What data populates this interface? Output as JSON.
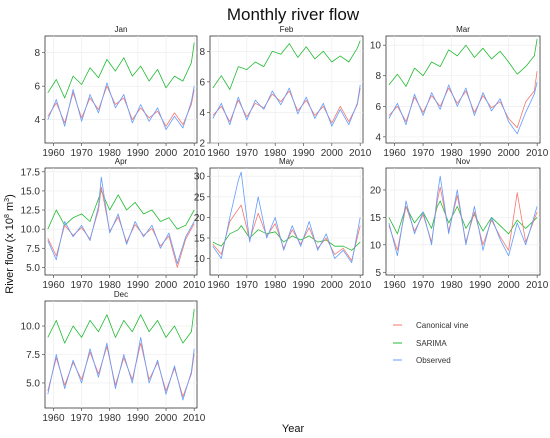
{
  "figure": {
    "title": "Monthly river flow",
    "xlabel": "Year",
    "ylabel_main": "River flow (x 10",
    "ylabel_sup": "8",
    "ylabel_tail": " m",
    "ylabel_sup2": "3",
    "ylabel_end": ")"
  },
  "legend": {
    "position": "bottom-right",
    "items": [
      {
        "label": "Canonical vine",
        "color": "#f8766d"
      },
      {
        "label": "SARIMA",
        "color": "#22bb33"
      },
      {
        "label": "Observed",
        "color": "#619cff"
      }
    ]
  },
  "chart_data": [
    {
      "type": "line",
      "title": "Jan",
      "x_range": [
        1957,
        2011
      ],
      "ylim": [
        2.6,
        9.0
      ],
      "yticks": [
        4,
        6,
        8
      ],
      "xticks": [
        1960,
        1970,
        1980,
        1990,
        2000,
        2010
      ],
      "series": [
        {
          "name": "Observed",
          "x": [
            1958,
            1961,
            1964,
            1967,
            1970,
            1973,
            1976,
            1979,
            1982,
            1985,
            1988,
            1991,
            1994,
            1997,
            2000,
            2003,
            2006,
            2009,
            2010
          ],
          "values": [
            4.0,
            5.2,
            3.6,
            5.8,
            3.9,
            5.5,
            4.4,
            6.2,
            4.7,
            5.5,
            3.8,
            4.9,
            3.9,
            4.7,
            3.4,
            4.2,
            3.5,
            5.1,
            6.0
          ]
        },
        {
          "name": "Canonical vine",
          "x": [
            1958,
            1961,
            1964,
            1967,
            1970,
            1973,
            1976,
            1979,
            1982,
            1985,
            1988,
            1991,
            1994,
            1997,
            2000,
            2003,
            2006,
            2009,
            2010
          ],
          "values": [
            4.2,
            5.0,
            3.8,
            5.6,
            4.1,
            5.3,
            4.6,
            6.0,
            4.9,
            5.3,
            4.0,
            4.7,
            4.1,
            4.5,
            3.6,
            4.4,
            3.7,
            4.9,
            5.8
          ]
        },
        {
          "name": "SARIMA",
          "x": [
            1958,
            1961,
            1964,
            1967,
            1970,
            1973,
            1976,
            1979,
            1982,
            1985,
            1988,
            1991,
            1994,
            1997,
            2000,
            2003,
            2006,
            2009,
            2010
          ],
          "values": [
            5.6,
            6.4,
            5.3,
            6.6,
            6.1,
            7.1,
            6.5,
            7.6,
            6.9,
            7.7,
            6.6,
            7.2,
            6.3,
            7.0,
            5.9,
            6.6,
            6.3,
            7.4,
            8.6
          ]
        }
      ]
    },
    {
      "type": "line",
      "title": "Feb",
      "x_range": [
        1957,
        2011
      ],
      "ylim": [
        2.0,
        9.0
      ],
      "yticks": [
        2,
        4,
        6,
        8
      ],
      "xticks": [
        1960,
        1970,
        1980,
        1990,
        2000,
        2010
      ],
      "series": [
        {
          "name": "Observed",
          "x": [
            1958,
            1961,
            1964,
            1967,
            1970,
            1973,
            1976,
            1979,
            1982,
            1985,
            1988,
            1991,
            1994,
            1997,
            2000,
            2003,
            2006,
            2009,
            2010
          ],
          "values": [
            3.6,
            4.6,
            3.2,
            5.0,
            3.5,
            4.8,
            4.2,
            5.4,
            4.5,
            5.6,
            3.9,
            5.0,
            3.6,
            4.6,
            3.1,
            4.2,
            3.2,
            4.6,
            5.8
          ]
        },
        {
          "name": "Canonical vine",
          "x": [
            1958,
            1961,
            1964,
            1967,
            1970,
            1973,
            1976,
            1979,
            1982,
            1985,
            1988,
            1991,
            1994,
            1997,
            2000,
            2003,
            2006,
            2009,
            2010
          ],
          "values": [
            3.8,
            4.4,
            3.4,
            4.8,
            3.7,
            4.6,
            4.3,
            5.2,
            4.7,
            5.4,
            4.1,
            4.8,
            3.8,
            4.4,
            3.3,
            4.4,
            3.4,
            4.5,
            5.6
          ]
        },
        {
          "name": "SARIMA",
          "x": [
            1958,
            1961,
            1964,
            1967,
            1970,
            1973,
            1976,
            1979,
            1982,
            1985,
            1988,
            1991,
            1994,
            1997,
            2000,
            2003,
            2006,
            2009,
            2010
          ],
          "values": [
            5.6,
            6.4,
            5.5,
            7.0,
            6.8,
            7.3,
            7.0,
            8.0,
            7.8,
            8.5,
            7.6,
            8.3,
            7.5,
            8.0,
            7.3,
            7.7,
            7.3,
            8.2,
            8.7
          ]
        }
      ]
    },
    {
      "type": "line",
      "title": "Mar",
      "x_range": [
        1957,
        2011
      ],
      "ylim": [
        3.6,
        10.6
      ],
      "yticks": [
        4,
        6,
        8,
        10
      ],
      "xticks": [
        1960,
        1970,
        1980,
        1990,
        2000,
        2010
      ],
      "series": [
        {
          "name": "Observed",
          "x": [
            1958,
            1961,
            1964,
            1967,
            1970,
            1973,
            1976,
            1979,
            1982,
            1985,
            1988,
            1991,
            1994,
            1997,
            2000,
            2003,
            2006,
            2009,
            2010
          ],
          "values": [
            5.2,
            6.2,
            4.8,
            6.8,
            5.4,
            6.9,
            5.8,
            7.4,
            6.0,
            7.2,
            5.4,
            6.9,
            5.7,
            6.5,
            5.0,
            4.2,
            5.6,
            6.8,
            7.6
          ]
        },
        {
          "name": "Canonical vine",
          "x": [
            1958,
            1961,
            1964,
            1967,
            1970,
            1973,
            1976,
            1979,
            1982,
            1985,
            1988,
            1991,
            1994,
            1997,
            2000,
            2003,
            2006,
            2009,
            2010
          ],
          "values": [
            5.4,
            6.0,
            5.0,
            6.6,
            5.6,
            6.7,
            6.0,
            7.2,
            6.2,
            7.0,
            5.6,
            6.7,
            5.9,
            6.3,
            5.2,
            4.6,
            6.3,
            7.0,
            8.3
          ]
        },
        {
          "name": "SARIMA",
          "x": [
            1958,
            1961,
            1964,
            1967,
            1970,
            1973,
            1976,
            1979,
            1982,
            1985,
            1988,
            1991,
            1994,
            1997,
            2000,
            2003,
            2006,
            2009,
            2010
          ],
          "values": [
            7.4,
            8.1,
            7.3,
            8.5,
            8.0,
            8.9,
            8.6,
            9.7,
            9.3,
            10.0,
            9.2,
            9.8,
            9.1,
            9.6,
            8.9,
            8.1,
            8.6,
            9.3,
            10.4
          ]
        }
      ]
    },
    {
      "type": "line",
      "title": "Apr",
      "x_range": [
        1957,
        2011
      ],
      "ylim": [
        4.0,
        18.0
      ],
      "yticks": [
        5.0,
        7.5,
        10.0,
        12.5,
        15.0,
        17.5
      ],
      "xticks": [
        1960,
        1970,
        1980,
        1990,
        2000,
        2010
      ],
      "series": [
        {
          "name": "Observed",
          "x": [
            1958,
            1961,
            1964,
            1967,
            1970,
            1973,
            1976,
            1977,
            1980,
            1983,
            1986,
            1989,
            1992,
            1995,
            1998,
            2001,
            2004,
            2007,
            2010
          ],
          "values": [
            8.5,
            6.0,
            11.0,
            9.0,
            10.5,
            8.5,
            13.0,
            16.8,
            9.5,
            12.0,
            8.0,
            11.0,
            9.0,
            10.5,
            7.5,
            9.5,
            5.5,
            9.0,
            11.0
          ]
        },
        {
          "name": "Canonical vine",
          "x": [
            1958,
            1961,
            1964,
            1967,
            1970,
            1973,
            1976,
            1977,
            1980,
            1983,
            1986,
            1989,
            1992,
            1995,
            1998,
            2001,
            2004,
            2007,
            2010
          ],
          "values": [
            8.8,
            6.5,
            10.5,
            9.2,
            10.2,
            8.7,
            12.5,
            15.5,
            9.7,
            11.6,
            8.3,
            10.6,
            9.2,
            10.1,
            7.8,
            9.1,
            5.0,
            8.7,
            10.7
          ]
        },
        {
          "name": "SARIMA",
          "x": [
            1958,
            1961,
            1964,
            1967,
            1970,
            1973,
            1976,
            1977,
            1980,
            1983,
            1986,
            1989,
            1992,
            1995,
            1998,
            2001,
            2004,
            2007,
            2010
          ],
          "values": [
            10.0,
            12.5,
            10.5,
            11.5,
            12.0,
            11.0,
            14.0,
            15.0,
            12.5,
            14.5,
            12.5,
            13.5,
            12.0,
            12.5,
            11.0,
            11.5,
            10.0,
            10.5,
            12.5
          ]
        }
      ]
    },
    {
      "type": "line",
      "title": "May",
      "x_range": [
        1957,
        2011
      ],
      "ylim": [
        6.0,
        32.0
      ],
      "yticks": [
        10,
        15,
        20,
        25,
        30
      ],
      "xticks": [
        1960,
        1970,
        1980,
        1990,
        2000,
        2010
      ],
      "series": [
        {
          "name": "Observed",
          "x": [
            1958,
            1961,
            1964,
            1967,
            1968,
            1971,
            1974,
            1977,
            1980,
            1983,
            1986,
            1989,
            1992,
            1995,
            1998,
            2001,
            2004,
            2007,
            2010
          ],
          "values": [
            13.0,
            10.0,
            20.0,
            29.0,
            31.0,
            14.0,
            25.0,
            15.0,
            20.0,
            12.0,
            18.0,
            13.0,
            19.0,
            12.0,
            16.0,
            10.0,
            12.0,
            9.0,
            20.0
          ]
        },
        {
          "name": "Canonical vine",
          "x": [
            1958,
            1961,
            1964,
            1967,
            1968,
            1971,
            1974,
            1977,
            1980,
            1983,
            1986,
            1989,
            1992,
            1995,
            1998,
            2001,
            2004,
            2007,
            2010
          ],
          "values": [
            13.5,
            11.0,
            19.0,
            22.0,
            23.0,
            14.5,
            21.0,
            15.5,
            18.5,
            12.5,
            17.0,
            13.5,
            17.5,
            12.5,
            15.0,
            11.0,
            12.5,
            9.5,
            18.0
          ]
        },
        {
          "name": "SARIMA",
          "x": [
            1958,
            1961,
            1964,
            1967,
            1968,
            1971,
            1974,
            1977,
            1980,
            1983,
            1986,
            1989,
            1992,
            1995,
            1998,
            2001,
            2004,
            2007,
            2010
          ],
          "values": [
            14.0,
            13.0,
            16.0,
            17.0,
            18.0,
            15.0,
            17.0,
            16.0,
            16.5,
            14.0,
            15.5,
            14.5,
            15.5,
            14.0,
            14.5,
            13.0,
            13.0,
            12.0,
            14.0
          ]
        }
      ]
    },
    {
      "type": "line",
      "title": "Nov",
      "x_range": [
        1957,
        2011
      ],
      "ylim": [
        4.5,
        24.0
      ],
      "yticks": [
        5,
        10,
        15,
        20
      ],
      "xticks": [
        1960,
        1970,
        1980,
        1990,
        2000,
        2010
      ],
      "series": [
        {
          "name": "Observed",
          "x": [
            1958,
            1961,
            1964,
            1967,
            1970,
            1973,
            1975,
            1976,
            1979,
            1982,
            1985,
            1988,
            1991,
            1994,
            1997,
            2000,
            2003,
            2006,
            2010
          ],
          "values": [
            14.0,
            8.0,
            18.0,
            12.0,
            16.0,
            10.0,
            19.0,
            22.5,
            12.0,
            20.0,
            10.0,
            17.0,
            9.0,
            15.0,
            11.0,
            8.0,
            14.0,
            10.0,
            17.0
          ]
        },
        {
          "name": "Canonical vine",
          "x": [
            1958,
            1961,
            1964,
            1967,
            1970,
            1973,
            1975,
            1976,
            1979,
            1982,
            1985,
            1988,
            1991,
            1994,
            1997,
            2000,
            2003,
            2006,
            2010
          ],
          "values": [
            13.5,
            9.0,
            17.0,
            12.5,
            15.5,
            10.5,
            18.0,
            20.5,
            12.5,
            19.0,
            10.5,
            16.0,
            10.0,
            14.5,
            11.5,
            9.0,
            19.5,
            10.5,
            16.0
          ]
        },
        {
          "name": "SARIMA",
          "x": [
            1958,
            1961,
            1964,
            1967,
            1970,
            1973,
            1975,
            1976,
            1979,
            1982,
            1985,
            1988,
            1991,
            1994,
            1997,
            2000,
            2003,
            2006,
            2010
          ],
          "values": [
            15.0,
            12.0,
            17.0,
            14.0,
            16.0,
            13.0,
            17.0,
            18.0,
            14.0,
            17.0,
            13.0,
            15.5,
            12.5,
            15.0,
            13.5,
            12.0,
            14.5,
            13.0,
            15.0
          ]
        }
      ]
    },
    {
      "type": "line",
      "title": "Dec",
      "x_range": [
        1957,
        2011
      ],
      "ylim": [
        2.8,
        12.2
      ],
      "yticks": [
        5.0,
        7.5,
        10.0
      ],
      "xticks": [
        1960,
        1970,
        1980,
        1990,
        2000,
        2010
      ],
      "series": [
        {
          "name": "Observed",
          "x": [
            1958,
            1961,
            1964,
            1967,
            1970,
            1973,
            1976,
            1979,
            1982,
            1985,
            1988,
            1991,
            1994,
            1997,
            2000,
            2003,
            2006,
            2009,
            2010
          ],
          "values": [
            4.0,
            7.5,
            4.5,
            7.0,
            5.0,
            8.0,
            5.5,
            8.5,
            4.5,
            7.5,
            5.0,
            9.0,
            5.0,
            7.0,
            4.0,
            6.5,
            3.5,
            6.0,
            8.0
          ]
        },
        {
          "name": "Canonical vine",
          "x": [
            1958,
            1961,
            1964,
            1967,
            1970,
            1973,
            1976,
            1979,
            1982,
            1985,
            1988,
            1991,
            1994,
            1997,
            2000,
            2003,
            2006,
            2009,
            2010
          ],
          "values": [
            4.3,
            7.2,
            4.8,
            6.8,
            5.3,
            7.7,
            5.8,
            8.2,
            4.8,
            7.2,
            5.3,
            8.5,
            5.3,
            6.8,
            4.3,
            6.3,
            3.8,
            5.8,
            7.6
          ]
        },
        {
          "name": "SARIMA",
          "x": [
            1958,
            1961,
            1964,
            1967,
            1970,
            1973,
            1976,
            1979,
            1982,
            1985,
            1988,
            1991,
            1994,
            1997,
            2000,
            2003,
            2006,
            2009,
            2010
          ],
          "values": [
            9.0,
            10.5,
            8.5,
            10.0,
            9.0,
            10.5,
            9.5,
            11.0,
            9.0,
            10.5,
            9.5,
            11.0,
            9.5,
            10.5,
            9.0,
            10.0,
            8.5,
            9.5,
            11.5
          ]
        }
      ]
    }
  ]
}
